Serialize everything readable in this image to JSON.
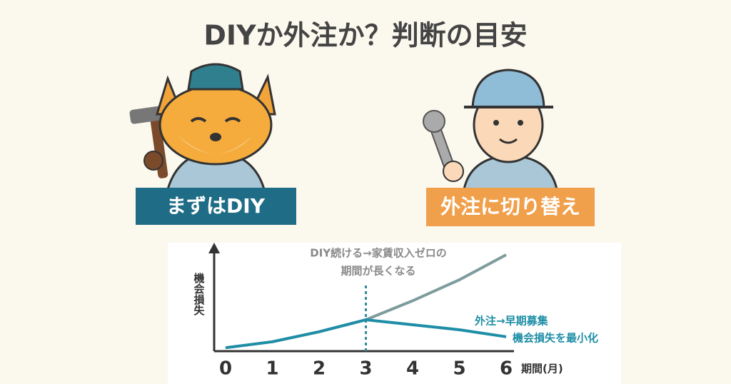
{
  "title": "DIYか外注か？判断の目安",
  "badges": [
    "まずはDIY",
    "外注に切り替え"
  ],
  "chart_data": {
    "type": "line",
    "x": [
      0,
      1,
      2,
      3,
      4,
      5,
      6
    ],
    "xlim": [
      0,
      6
    ],
    "xticks": [
      0,
      1,
      2,
      3,
      4,
      5,
      6
    ],
    "xlabel": "期間(月)",
    "ylabel": "機会損失",
    "ylim": [
      0,
      10
    ],
    "divider_x": 3,
    "series": [
      {
        "color": "#7f9c9c",
        "values": [
          0.2,
          0.8,
          1.8,
          3,
          4.9,
          7,
          9.5
        ]
      },
      {
        "color": "#1e8ea6",
        "values": [
          0.2,
          0.8,
          1.8,
          3,
          2.5,
          2,
          1.3
        ]
      }
    ],
    "annotations": [
      {
        "lines": [
          "DIY続ける→家賃収入ゼロの",
          "期間が長くなる"
        ],
        "color": "#8a8a8a"
      },
      {
        "lines": [
          "外注→早期募集",
          "機会損失を最小化"
        ],
        "color": "#1e8ea6"
      }
    ]
  }
}
